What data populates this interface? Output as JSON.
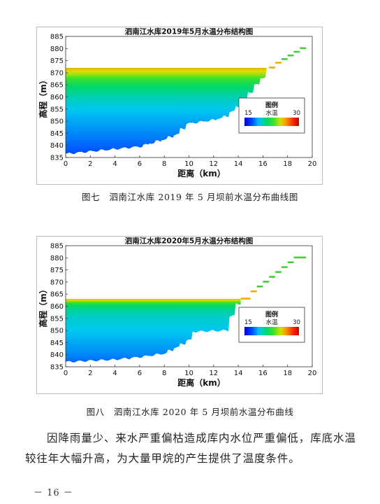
{
  "figures": [
    {
      "chart_data": {
        "type": "heatmap",
        "title": "泗南江水库2019年5月水温分布结构图",
        "xlabel": "距离（km）",
        "ylabel": "高程（m）",
        "xlim": [
          0,
          20
        ],
        "ylim": [
          835,
          885
        ],
        "xticks": [
          "0",
          "2",
          "4",
          "6",
          "8",
          "10",
          "12",
          "14",
          "16",
          "18",
          "20"
        ],
        "yticks": [
          "835",
          "840",
          "845",
          "850",
          "855",
          "860",
          "865",
          "870",
          "875",
          "880",
          "885"
        ],
        "water_surface_elevation": 872,
        "surface_temperature": 26,
        "legend": {
          "title": "图例",
          "variable": "水温",
          "min": 15,
          "max": 30
        },
        "bottom_profile": [
          [
            0,
            836.5
          ],
          [
            1,
            837
          ],
          [
            2,
            837.5
          ],
          [
            3,
            838
          ],
          [
            4,
            838.5
          ],
          [
            5,
            839
          ],
          [
            6,
            839.5
          ],
          [
            7,
            841
          ],
          [
            8,
            842.5
          ],
          [
            9,
            844.5
          ],
          [
            9.5,
            847
          ],
          [
            10,
            849
          ],
          [
            12,
            850.5
          ],
          [
            13,
            852
          ],
          [
            14,
            856
          ],
          [
            15,
            862
          ],
          [
            16,
            868
          ],
          [
            16.5,
            872
          ]
        ],
        "bank_steps": [
          [
            16.5,
            872
          ],
          [
            17,
            874
          ],
          [
            17.5,
            875.5
          ],
          [
            18,
            877
          ],
          [
            18.5,
            878.5
          ],
          [
            19,
            880
          ],
          [
            19.5,
            880.5
          ]
        ],
        "temperature_profile": [
          [
            836,
            17
          ],
          [
            840,
            17.5
          ],
          [
            845,
            18
          ],
          [
            850,
            18.5
          ],
          [
            855,
            19
          ],
          [
            860,
            20
          ],
          [
            864,
            21
          ],
          [
            867,
            22.5
          ],
          [
            869,
            24
          ],
          [
            872,
            26
          ]
        ]
      },
      "caption": "图七　泗南江水库 2019 年 5 月坝前水温分布曲线图"
    },
    {
      "chart_data": {
        "type": "heatmap",
        "title": "泗南江水库2020年5月水温分布结构图",
        "xlabel": "距离（km）",
        "ylabel": "高程（m）",
        "xlim": [
          0,
          20
        ],
        "ylim": [
          835,
          885
        ],
        "xticks": [
          "0",
          "2",
          "4",
          "6",
          "8",
          "10",
          "12",
          "14",
          "16",
          "18",
          "20"
        ],
        "yticks": [
          "835",
          "840",
          "845",
          "850",
          "855",
          "860",
          "865",
          "870",
          "875",
          "880",
          "885"
        ],
        "water_surface_elevation": 863,
        "surface_temperature": 26,
        "legend": {
          "title": "图例",
          "variable": "水温",
          "min": 15,
          "max": 30
        },
        "bottom_profile": [
          [
            0,
            837
          ],
          [
            2,
            837.5
          ],
          [
            4,
            838
          ],
          [
            6,
            839
          ],
          [
            8,
            840.5
          ],
          [
            9,
            843
          ],
          [
            10,
            846
          ],
          [
            10.5,
            849.5
          ],
          [
            13,
            850
          ],
          [
            13.5,
            856
          ],
          [
            14,
            861
          ],
          [
            14.2,
            863
          ]
        ],
        "bank_steps": [
          [
            14.2,
            863
          ],
          [
            15,
            866
          ],
          [
            15.5,
            868
          ],
          [
            16,
            870
          ],
          [
            16.5,
            872
          ],
          [
            17,
            874
          ],
          [
            17.5,
            876
          ],
          [
            18,
            878
          ],
          [
            18.5,
            880
          ],
          [
            19.5,
            881
          ]
        ],
        "temperature_profile": [
          [
            837,
            17.5
          ],
          [
            840,
            18
          ],
          [
            845,
            18.5
          ],
          [
            850,
            19
          ],
          [
            855,
            19.5
          ],
          [
            859,
            20.5
          ],
          [
            861,
            22
          ],
          [
            863,
            26
          ]
        ]
      },
      "caption": "图八　泗南江水库 2020 年 5 月坝前水温分布曲线"
    }
  ],
  "body_text": "因降雨量少、来水严重偏枯造成库内水位严重偏低，库底水温较往年大幅升高，为大量甲烷的产生提供了温度条件。",
  "page_number": "－ 16 －"
}
